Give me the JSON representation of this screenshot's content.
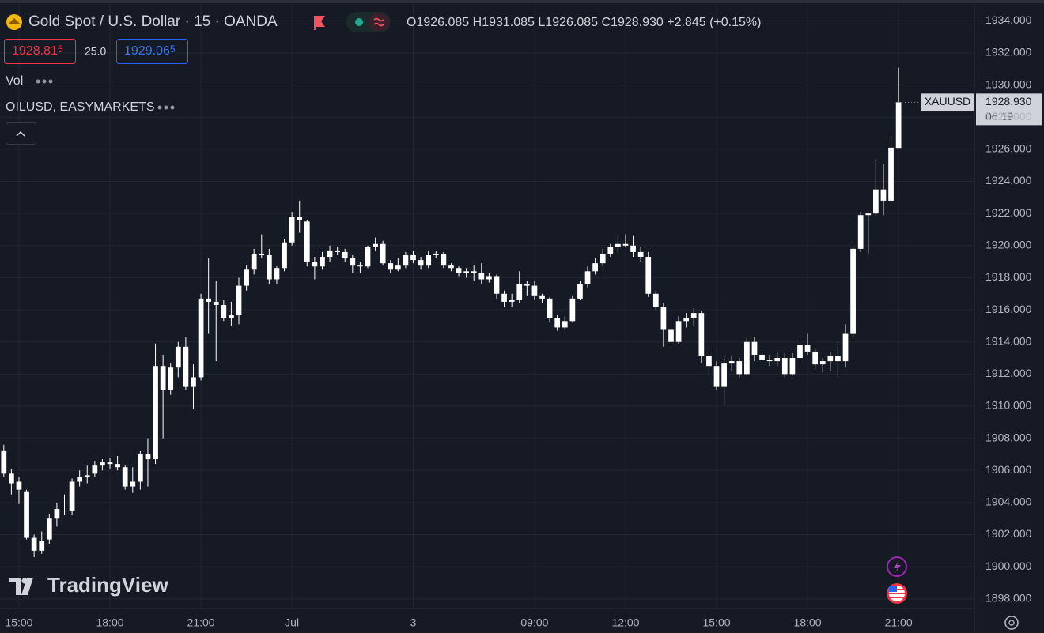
{
  "header": {
    "symbol": "Gold Spot / U.S. Dollar · 15 · OANDA",
    "open": "O1926.085",
    "high": "H1931.085",
    "low": "L1926.085",
    "close": "C1928.930",
    "change": "+2.845 (+0.15%)",
    "bid": {
      "main": "1928.81",
      "pip": "5"
    },
    "spread": "25.0",
    "ask": {
      "main": "1929.06",
      "pip": "5"
    },
    "indicators": [
      "Vol",
      "OILUSD, EASYMARKETS"
    ]
  },
  "logo": "TradingView",
  "chart_data": {
    "type": "candlestick",
    "color": "#ffffff",
    "grid": true,
    "series": {
      "name": "XAUUSD",
      "open": [
        1907.2,
        1905.8,
        1905.3,
        1904.7,
        1901.8,
        1901.0,
        1901.7,
        1903.0,
        1903.5,
        1903.5,
        1905.3,
        1905.6,
        1905.8,
        1906.3,
        1906.5,
        1906.4,
        1906.2,
        1905.0,
        1905.3,
        1907.0,
        1906.7,
        1912.5,
        1911.0,
        1912.4,
        1913.7,
        1911.2,
        1911.8,
        1916.7,
        1916.5,
        1916.3,
        1915.5,
        1915.7,
        1917.5,
        1918.5,
        1919.5,
        1919.4,
        1917.9,
        1918.6,
        1920.2,
        1921.8,
        1921.5,
        1919.0,
        1918.7,
        1919.3,
        1919.7,
        1919.6,
        1919.2,
        1918.8,
        1918.7,
        1919.9,
        1920.1,
        1918.9,
        1918.5,
        1918.8,
        1919.4,
        1919.1,
        1918.8,
        1919.4,
        1919.5,
        1918.8,
        1918.6,
        1918.3,
        1918.4,
        1918.3,
        1917.9,
        1918.1,
        1917.0,
        1916.5,
        1916.6,
        1917.6,
        1917.5,
        1916.9,
        1916.7,
        1915.5,
        1914.9,
        1915.3,
        1916.7,
        1917.6,
        1918.4,
        1918.9,
        1919.5,
        1919.9,
        1920.1,
        1920.0,
        1919.6,
        1919.3,
        1917.0,
        1916.2,
        1914.8,
        1914.0,
        1915.3,
        1915.5,
        1915.8,
        1913.1,
        1912.5,
        1911.2,
        1912.7,
        1912.8,
        1912.0,
        1914.0,
        1913.2,
        1912.9,
        1912.8,
        1913.0,
        1912.0,
        1913.0,
        1913.8,
        1913.4,
        1912.6,
        1912.8,
        1913.1,
        1912.8,
        1914.5,
        1919.8,
        1921.9,
        1922.0,
        1923.5,
        1922.8,
        1926.085
      ],
      "high": [
        1907.6,
        1906.1,
        1905.6,
        1904.8,
        1902.0,
        1902.2,
        1903.3,
        1904.0,
        1904.5,
        1905.5,
        1906.0,
        1906.3,
        1906.6,
        1906.7,
        1906.8,
        1906.9,
        1906.3,
        1906.2,
        1907.2,
        1908.0,
        1913.9,
        1913.2,
        1912.7,
        1914.0,
        1914.3,
        1912.6,
        1917.0,
        1919.2,
        1917.8,
        1916.6,
        1916.5,
        1918.0,
        1918.8,
        1919.8,
        1920.7,
        1919.8,
        1918.7,
        1920.4,
        1922.1,
        1922.8,
        1921.6,
        1919.3,
        1919.6,
        1920.0,
        1919.9,
        1919.8,
        1919.4,
        1919.0,
        1920.0,
        1920.5,
        1920.3,
        1919.1,
        1919.2,
        1919.6,
        1919.7,
        1919.3,
        1919.7,
        1919.7,
        1919.6,
        1918.9,
        1918.7,
        1918.6,
        1918.8,
        1918.9,
        1918.3,
        1918.2,
        1917.2,
        1917.0,
        1918.4,
        1917.8,
        1917.8,
        1917.0,
        1916.8,
        1915.7,
        1915.6,
        1916.9,
        1917.8,
        1918.7,
        1919.2,
        1919.8,
        1920.1,
        1920.6,
        1920.7,
        1920.6,
        1919.9,
        1919.6,
        1917.2,
        1916.4,
        1915.3,
        1915.6,
        1915.8,
        1916.1,
        1915.9,
        1913.3,
        1912.8,
        1913.1,
        1913.1,
        1913.0,
        1914.3,
        1914.3,
        1913.4,
        1913.2,
        1913.4,
        1913.3,
        1913.3,
        1914.4,
        1914.5,
        1913.6,
        1913.0,
        1913.4,
        1914.0,
        1915.1,
        1920.0,
        1922.1,
        1922.0,
        1925.4,
        1925.1,
        1927.0,
        1931.085
      ],
      "low": [
        1905.6,
        1904.5,
        1903.9,
        1901.7,
        1900.6,
        1900.8,
        1901.4,
        1902.5,
        1903.2,
        1903.2,
        1905.0,
        1905.2,
        1905.6,
        1906.0,
        1906.1,
        1906.0,
        1904.8,
        1904.6,
        1904.8,
        1905.0,
        1906.4,
        1908.0,
        1910.7,
        1911.8,
        1911.0,
        1909.8,
        1911.6,
        1914.5,
        1912.8,
        1915.3,
        1915.0,
        1915.1,
        1917.2,
        1918.2,
        1919.2,
        1917.6,
        1917.6,
        1918.4,
        1920.0,
        1920.8,
        1918.7,
        1917.9,
        1918.5,
        1919.0,
        1919.4,
        1919.0,
        1918.3,
        1918.3,
        1918.6,
        1919.7,
        1918.8,
        1918.3,
        1918.4,
        1918.6,
        1918.9,
        1918.5,
        1918.6,
        1919.2,
        1918.6,
        1918.4,
        1918.1,
        1918.0,
        1917.8,
        1917.6,
        1917.7,
        1916.7,
        1916.2,
        1916.2,
        1916.4,
        1916.9,
        1916.6,
        1916.4,
        1915.2,
        1914.7,
        1914.8,
        1915.2,
        1916.6,
        1917.4,
        1918.2,
        1918.7,
        1919.3,
        1919.6,
        1919.9,
        1919.3,
        1919.0,
        1916.8,
        1916.0,
        1913.7,
        1913.8,
        1913.9,
        1914.9,
        1915.0,
        1912.7,
        1912.0,
        1911.0,
        1910.1,
        1912.2,
        1911.8,
        1911.9,
        1912.8,
        1912.8,
        1912.5,
        1912.5,
        1911.8,
        1911.9,
        1912.8,
        1913.2,
        1912.3,
        1912.1,
        1912.2,
        1911.8,
        1912.4,
        1914.3,
        1919.6,
        1919.5,
        1921.9,
        1921.9,
        1922.7,
        1926.085
      ],
      "close": [
        1905.8,
        1905.2,
        1904.8,
        1901.8,
        1901.0,
        1901.6,
        1903.0,
        1903.6,
        1903.5,
        1905.3,
        1905.6,
        1905.7,
        1906.3,
        1906.5,
        1906.4,
        1906.2,
        1905.0,
        1905.3,
        1907.0,
        1906.7,
        1912.5,
        1911.0,
        1912.4,
        1913.7,
        1911.2,
        1911.8,
        1916.7,
        1916.5,
        1916.3,
        1915.5,
        1915.7,
        1917.5,
        1918.5,
        1919.5,
        1919.4,
        1917.9,
        1918.6,
        1920.2,
        1921.8,
        1921.6,
        1919.0,
        1918.7,
        1919.3,
        1919.7,
        1919.6,
        1919.2,
        1918.8,
        1918.7,
        1919.9,
        1920.1,
        1918.9,
        1918.5,
        1918.8,
        1919.4,
        1919.1,
        1918.8,
        1919.4,
        1919.5,
        1918.8,
        1918.6,
        1918.3,
        1918.4,
        1918.3,
        1917.9,
        1918.1,
        1917.0,
        1916.5,
        1916.6,
        1917.6,
        1917.5,
        1916.9,
        1916.7,
        1915.5,
        1914.9,
        1915.3,
        1916.7,
        1917.6,
        1918.4,
        1918.9,
        1919.5,
        1919.9,
        1920.1,
        1920.0,
        1919.6,
        1919.3,
        1917.0,
        1916.2,
        1914.8,
        1914.0,
        1915.3,
        1915.5,
        1915.8,
        1913.1,
        1912.5,
        1911.2,
        1912.7,
        1912.8,
        1912.0,
        1914.0,
        1913.2,
        1912.9,
        1912.8,
        1913.0,
        1912.0,
        1913.0,
        1913.8,
        1913.4,
        1912.6,
        1912.8,
        1913.1,
        1912.8,
        1914.5,
        1919.8,
        1921.9,
        1922.0,
        1923.5,
        1922.8,
        1926.1,
        1928.93
      ]
    },
    "last_price": {
      "name": "XAUUSD",
      "label": "1928.930",
      "countdown": "06:19"
    },
    "xlim": [
      -0.5,
      128
    ],
    "xticks": [
      {
        "value": 2,
        "label": "15:00"
      },
      {
        "value": 14,
        "label": "18:00"
      },
      {
        "value": 26,
        "label": "21:00"
      },
      {
        "value": 38,
        "label": "Jul"
      },
      {
        "value": 54,
        "label": "3"
      },
      {
        "value": 70,
        "label": "09:00"
      },
      {
        "value": 82,
        "label": "12:00"
      },
      {
        "value": 94,
        "label": "15:00"
      },
      {
        "value": 106,
        "label": "18:00"
      },
      {
        "value": 118,
        "label": "21:00"
      }
    ],
    "ylim": [
      1897.4,
      1935.1
    ],
    "yticks": [
      {
        "value": 1898,
        "label": "1898.000"
      },
      {
        "value": 1900,
        "label": "1900.000"
      },
      {
        "value": 1902,
        "label": "1902.000"
      },
      {
        "value": 1904,
        "label": "1904.000"
      },
      {
        "value": 1906,
        "label": "1906.000"
      },
      {
        "value": 1908,
        "label": "1908.000"
      },
      {
        "value": 1910,
        "label": "1910.000"
      },
      {
        "value": 1912,
        "label": "1912.000"
      },
      {
        "value": 1914,
        "label": "1914.000"
      },
      {
        "value": 1916,
        "label": "1916.000"
      },
      {
        "value": 1918,
        "label": "1918.000"
      },
      {
        "value": 1920,
        "label": "1920.000"
      },
      {
        "value": 1922,
        "label": "1922.000"
      },
      {
        "value": 1924,
        "label": "1924.000"
      },
      {
        "value": 1926,
        "label": "1926.000"
      },
      {
        "value": 1928,
        "label": "1928.000"
      },
      {
        "value": 1930,
        "label": "1930.000"
      },
      {
        "value": 1932,
        "label": "1932.000"
      },
      {
        "value": 1934,
        "label": "1934.000"
      }
    ]
  }
}
